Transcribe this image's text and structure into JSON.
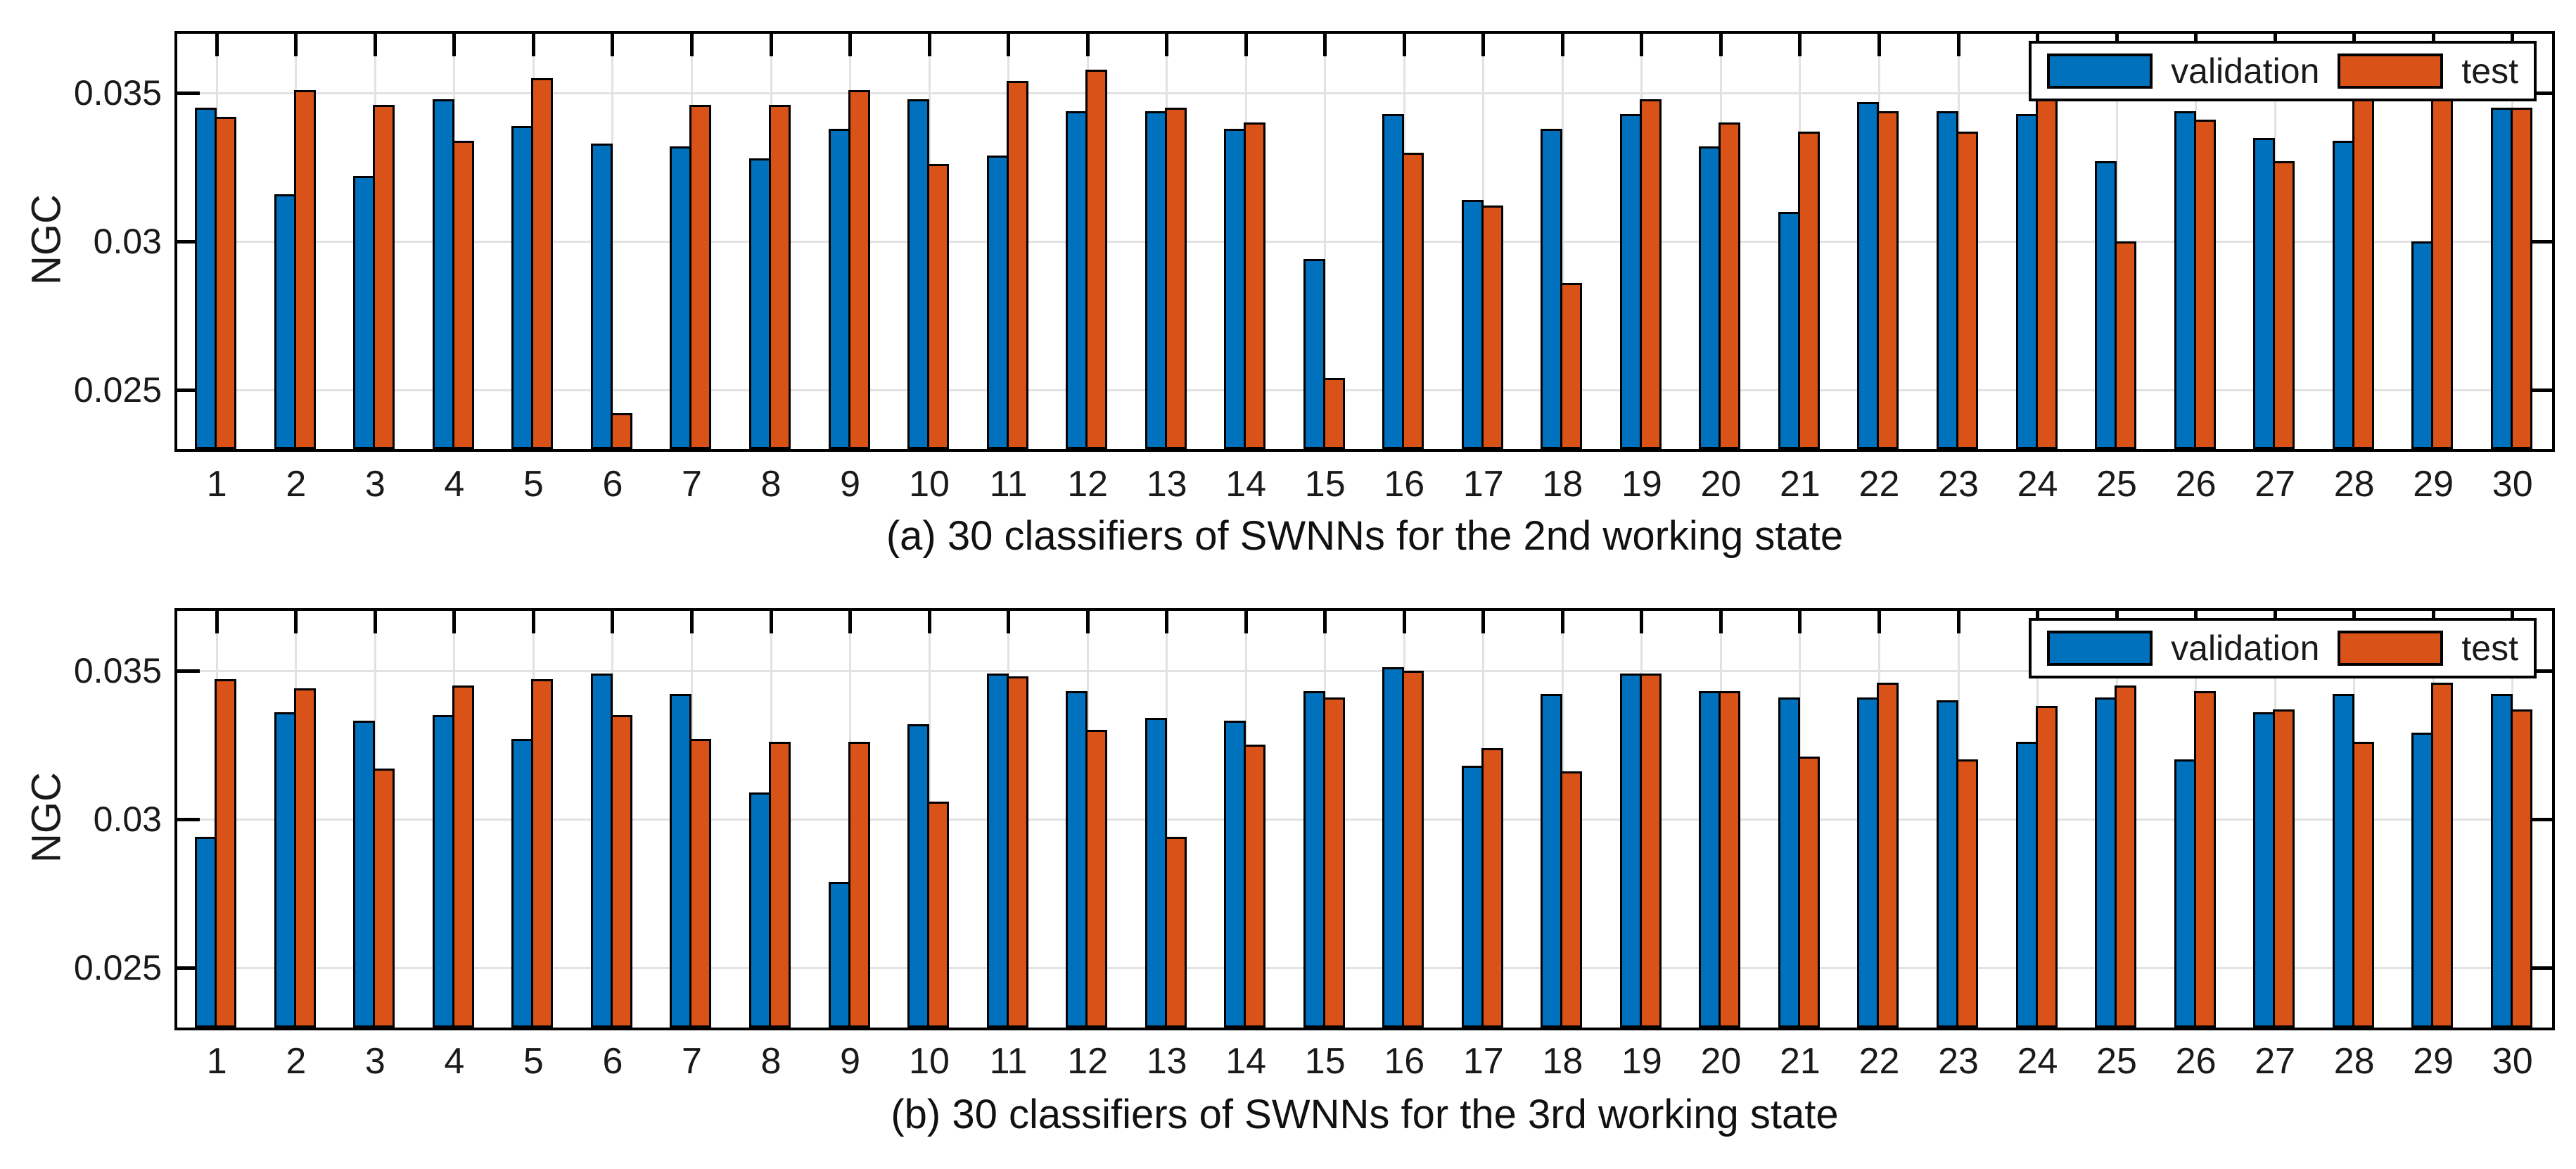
{
  "figure": {
    "background": "#ffffff",
    "axis_color": "#000000",
    "grid_color": "#e2e2e2",
    "tick_label_color": "#1a1a1a",
    "legend": {
      "position": "top-right",
      "items": [
        {
          "label": "validation",
          "color": "#0072BD"
        },
        {
          "label": "test",
          "color": "#D95319"
        }
      ]
    }
  },
  "chart_data": [
    {
      "type": "bar",
      "title": "(a) 30 classifiers of SWNNs for the 2nd working state",
      "xlabel": "",
      "ylabel": "NGC",
      "ylim": [
        0.023,
        0.037
      ],
      "grid": true,
      "legend_position": "top-right",
      "yticks": [
        {
          "value": 0.025,
          "label": "0.025"
        },
        {
          "value": 0.03,
          "label": "0.03"
        },
        {
          "value": 0.035,
          "label": "0.035"
        }
      ],
      "categories": [
        "1",
        "2",
        "3",
        "4",
        "5",
        "6",
        "7",
        "8",
        "9",
        "10",
        "11",
        "12",
        "13",
        "14",
        "15",
        "16",
        "17",
        "18",
        "19",
        "20",
        "21",
        "22",
        "23",
        "24",
        "25",
        "26",
        "27",
        "28",
        "29",
        "30"
      ],
      "series": [
        {
          "name": "validation",
          "color": "#0072BD",
          "values": [
            0.0345,
            0.0316,
            0.0322,
            0.0348,
            0.0339,
            0.0333,
            0.0332,
            0.0328,
            0.0338,
            0.0348,
            0.0329,
            0.0344,
            0.0344,
            0.0338,
            0.0294,
            0.0343,
            0.0314,
            0.0338,
            0.0343,
            0.0332,
            0.031,
            0.0347,
            0.0344,
            0.0343,
            0.0327,
            0.0344,
            0.0335,
            0.0334,
            0.03,
            0.0345
          ]
        },
        {
          "name": "test",
          "color": "#D95319",
          "values": [
            0.0342,
            0.0351,
            0.0346,
            0.0334,
            0.0355,
            0.0242,
            0.0346,
            0.0346,
            0.0351,
            0.0326,
            0.0354,
            0.0358,
            0.0345,
            0.034,
            0.0254,
            0.033,
            0.0312,
            0.0286,
            0.0348,
            0.034,
            0.0337,
            0.0344,
            0.0337,
            0.0355,
            0.03,
            0.0341,
            0.0327,
            0.0348,
            0.0353,
            0.0345
          ]
        }
      ]
    },
    {
      "type": "bar",
      "title": "(b) 30 classifiers of SWNNs for the 3rd working state",
      "xlabel": "",
      "ylabel": "NGC",
      "ylim": [
        0.023,
        0.037
      ],
      "grid": true,
      "legend_position": "top-right",
      "yticks": [
        {
          "value": 0.025,
          "label": "0.025"
        },
        {
          "value": 0.03,
          "label": "0.03"
        },
        {
          "value": 0.035,
          "label": "0.035"
        }
      ],
      "categories": [
        "1",
        "2",
        "3",
        "4",
        "5",
        "6",
        "7",
        "8",
        "9",
        "10",
        "11",
        "12",
        "13",
        "14",
        "15",
        "16",
        "17",
        "18",
        "19",
        "20",
        "21",
        "22",
        "23",
        "24",
        "25",
        "26",
        "27",
        "28",
        "29",
        "30"
      ],
      "series": [
        {
          "name": "validation",
          "color": "#0072BD",
          "values": [
            0.0294,
            0.0336,
            0.0333,
            0.0335,
            0.0327,
            0.0349,
            0.0342,
            0.0309,
            0.0279,
            0.0332,
            0.0349,
            0.0343,
            0.0334,
            0.0333,
            0.0343,
            0.0351,
            0.0318,
            0.0342,
            0.0349,
            0.0343,
            0.0341,
            0.0341,
            0.034,
            0.0326,
            0.0341,
            0.032,
            0.0336,
            0.0342,
            0.0329,
            0.0342
          ]
        },
        {
          "name": "test",
          "color": "#D95319",
          "values": [
            0.0347,
            0.0344,
            0.0317,
            0.0345,
            0.0347,
            0.0335,
            0.0327,
            0.0326,
            0.0326,
            0.0306,
            0.0348,
            0.033,
            0.0294,
            0.0325,
            0.0341,
            0.035,
            0.0324,
            0.0316,
            0.0349,
            0.0343,
            0.0321,
            0.0346,
            0.032,
            0.0338,
            0.0345,
            0.0343,
            0.0337,
            0.0326,
            0.0346,
            0.0337
          ]
        }
      ]
    }
  ]
}
